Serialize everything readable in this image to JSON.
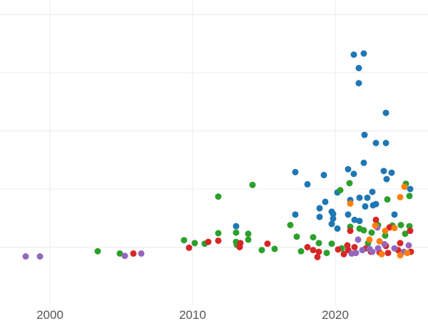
{
  "chart_data": {
    "type": "scatter",
    "title": "",
    "xlabel": "",
    "ylabel": "",
    "xlim": [
      1996.5,
      2026.5
    ],
    "ylim": [
      0,
      1.05
    ],
    "grid": true,
    "x_ticks": [
      "2000",
      "2010",
      "2020"
    ],
    "x_tick_values": [
      2000,
      2010,
      2020
    ],
    "y_grid_values": [
      0.2,
      0.4,
      0.6,
      0.8,
      1.0
    ],
    "series": [
      {
        "color": "#1f77b4",
        "points": [
          [
            2021.3,
            0.862
          ],
          [
            2022.0,
            0.866
          ],
          [
            2021.65,
            0.816
          ],
          [
            2021.65,
            0.764
          ],
          [
            2023.55,
            0.662
          ],
          [
            2022.05,
            0.586
          ],
          [
            2022.85,
            0.558
          ],
          [
            2023.55,
            0.558
          ],
          [
            2022.0,
            0.49
          ],
          [
            2023.4,
            0.462
          ],
          [
            2023.95,
            0.456
          ],
          [
            2023.6,
            0.434
          ],
          [
            2017.2,
            0.458
          ],
          [
            2020.9,
            0.468
          ],
          [
            2021.3,
            0.452
          ],
          [
            2019.2,
            0.448
          ],
          [
            2018.05,
            0.416
          ],
          [
            2020.15,
            0.388
          ],
          [
            2022.6,
            0.39
          ],
          [
            2021.7,
            0.37
          ],
          [
            2022.25,
            0.37
          ],
          [
            2021.05,
            0.362
          ],
          [
            2019.3,
            0.356
          ],
          [
            2022.65,
            0.344
          ],
          [
            2022.85,
            0.348
          ],
          [
            2022.1,
            0.34
          ],
          [
            2018.9,
            0.334
          ],
          [
            2019.75,
            0.322
          ],
          [
            2019.85,
            0.314
          ],
          [
            2020.9,
            0.312
          ],
          [
            2024.15,
            0.312
          ],
          [
            2017.2,
            0.312
          ],
          [
            2018.9,
            0.304
          ],
          [
            2019.85,
            0.298
          ],
          [
            2021.35,
            0.294
          ],
          [
            2021.7,
            0.29
          ],
          [
            2019.75,
            0.28
          ],
          [
            2020.15,
            0.264
          ],
          [
            2013.05,
            0.272
          ],
          [
            2025.25,
            0.4
          ]
        ]
      },
      {
        "color": "#2ca02c",
        "points": [
          [
            2014.2,
            0.414
          ],
          [
            2021.0,
            0.42
          ],
          [
            2024.95,
            0.418
          ],
          [
            2020.35,
            0.396
          ],
          [
            2025.2,
            0.376
          ],
          [
            2011.8,
            0.374
          ],
          [
            2023.65,
            0.364
          ],
          [
            2016.85,
            0.276
          ],
          [
            2021.05,
            0.27
          ],
          [
            2021.7,
            0.264
          ],
          [
            2022.0,
            0.258
          ],
          [
            2023.0,
            0.276
          ],
          [
            2024.0,
            0.274
          ],
          [
            2024.6,
            0.276
          ],
          [
            2025.2,
            0.272
          ],
          [
            2011.8,
            0.248
          ],
          [
            2013.05,
            0.25
          ],
          [
            2013.9,
            0.246
          ],
          [
            2017.3,
            0.236
          ],
          [
            2018.45,
            0.234
          ],
          [
            2022.55,
            0.25
          ],
          [
            2023.5,
            0.24
          ],
          [
            2024.9,
            0.246
          ],
          [
            2009.4,
            0.224
          ],
          [
            2010.15,
            0.214
          ],
          [
            2010.85,
            0.212
          ],
          [
            2013.05,
            0.218
          ],
          [
            2013.9,
            0.226
          ],
          [
            2013.1,
            0.208
          ],
          [
            2015.75,
            0.194
          ],
          [
            2018.85,
            0.214
          ],
          [
            2019.75,
            0.212
          ],
          [
            2014.85,
            0.19
          ],
          [
            2017.6,
            0.186
          ],
          [
            2019.4,
            0.18
          ],
          [
            2003.35,
            0.186
          ],
          [
            2004.9,
            0.178
          ],
          [
            2022.3,
            0.214
          ],
          [
            2020.45,
            0.196
          ]
        ]
      },
      {
        "color": "#d62728",
        "points": [
          [
            2022.85,
            0.294
          ],
          [
            2021.05,
            0.256
          ],
          [
            2023.8,
            0.268
          ],
          [
            2025.25,
            0.256
          ],
          [
            2011.1,
            0.218
          ],
          [
            2011.8,
            0.222
          ],
          [
            2013.35,
            0.214
          ],
          [
            2015.25,
            0.212
          ],
          [
            2013.3,
            0.2
          ],
          [
            2009.75,
            0.198
          ],
          [
            2018.05,
            0.2
          ],
          [
            2018.45,
            0.19
          ],
          [
            2018.85,
            0.184
          ],
          [
            2018.75,
            0.166
          ],
          [
            2020.2,
            0.192
          ],
          [
            2020.9,
            0.19
          ],
          [
            2021.35,
            0.2
          ],
          [
            2022.15,
            0.196
          ],
          [
            2023.55,
            0.204
          ],
          [
            2024.55,
            0.214
          ],
          [
            2005.85,
            0.178
          ],
          [
            2020.85,
            0.206
          ],
          [
            2022.5,
            0.184
          ],
          [
            2023.1,
            0.182
          ],
          [
            2024.4,
            0.19
          ],
          [
            2025.3,
            0.184
          ],
          [
            2020.6,
            0.176
          ],
          [
            2023.7,
            0.18
          ]
        ]
      },
      {
        "color": "#9467bd",
        "points": [
          [
            1998.3,
            0.168
          ],
          [
            1999.3,
            0.168
          ],
          [
            2005.25,
            0.17
          ],
          [
            2006.4,
            0.178
          ],
          [
            2022.95,
            0.268
          ],
          [
            2021.6,
            0.226
          ],
          [
            2022.4,
            0.194
          ],
          [
            2023.45,
            0.21
          ],
          [
            2024.15,
            0.196
          ],
          [
            2025.15,
            0.206
          ],
          [
            2021.15,
            0.178
          ],
          [
            2021.9,
            0.19
          ],
          [
            2023.0,
            0.196
          ],
          [
            2024.8,
            0.184
          ],
          [
            2021.45,
            0.18
          ],
          [
            2022.6,
            0.184
          ]
        ]
      },
      {
        "color": "#ff7f0e",
        "points": [
          [
            2024.85,
            0.408
          ],
          [
            2024.55,
            0.372
          ],
          [
            2021.05,
            0.35
          ],
          [
            2022.8,
            0.274
          ],
          [
            2024.15,
            0.266
          ],
          [
            2023.5,
            0.256
          ],
          [
            2022.4,
            0.226
          ],
          [
            2023.1,
            0.22
          ],
          [
            2023.25,
            0.176
          ],
          [
            2024.55,
            0.172
          ],
          [
            2025.05,
            0.18
          ]
        ]
      }
    ]
  }
}
